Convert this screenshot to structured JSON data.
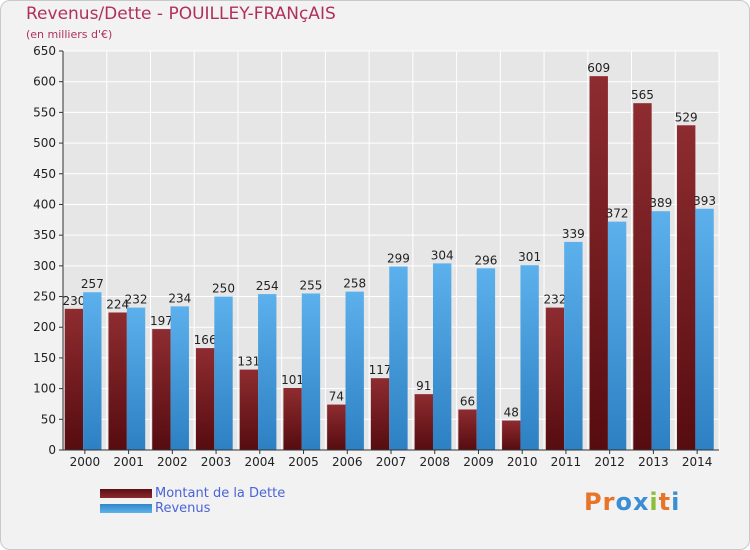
{
  "header": {
    "title": "Revenus/Dette - POUILLEY-FRANçAIS",
    "subtitle": "(en milliers d'€)"
  },
  "legend": {
    "items": [
      {
        "label": "Montant de la Dette",
        "color": "#7b1f23"
      },
      {
        "label": "Revenus",
        "color": "#4aa3e2"
      }
    ]
  },
  "logo": {
    "text": "Proxiti",
    "letters": [
      "P",
      "r",
      "o",
      "x",
      "i",
      "t",
      "i"
    ],
    "colors": [
      "#e8742a",
      "#e8742a",
      "#3a8fd4",
      "#3a8fd4",
      "#8bbf3a",
      "#e8742a",
      "#3a8fd4"
    ]
  },
  "colors": {
    "debt": "#7b1f23",
    "revenue": "#4aa3e2",
    "title": "#b0305a",
    "grid": "#ffffff"
  },
  "chart_data": {
    "type": "bar",
    "title": "Revenus/Dette - POUILLEY-FRANçAIS",
    "subtitle": "(en milliers d'€)",
    "categories": [
      "2000",
      "2001",
      "2002",
      "2003",
      "2004",
      "2005",
      "2006",
      "2007",
      "2008",
      "2009",
      "2010",
      "2011",
      "2012",
      "2013",
      "2014"
    ],
    "series": [
      {
        "name": "Montant de la Dette",
        "values": [
          230,
          224,
          197,
          166,
          131,
          101,
          74,
          117,
          91,
          66,
          48,
          232,
          609,
          565,
          529
        ]
      },
      {
        "name": "Revenus",
        "values": [
          257,
          232,
          234,
          250,
          254,
          255,
          258,
          299,
          304,
          296,
          301,
          339,
          372,
          389,
          393
        ]
      }
    ],
    "ylim": [
      0,
      650
    ],
    "yticks": [
      0,
      50,
      100,
      150,
      200,
      250,
      300,
      350,
      400,
      450,
      500,
      550,
      600,
      650
    ],
    "grid": true,
    "legend_position": "bottom-left"
  }
}
